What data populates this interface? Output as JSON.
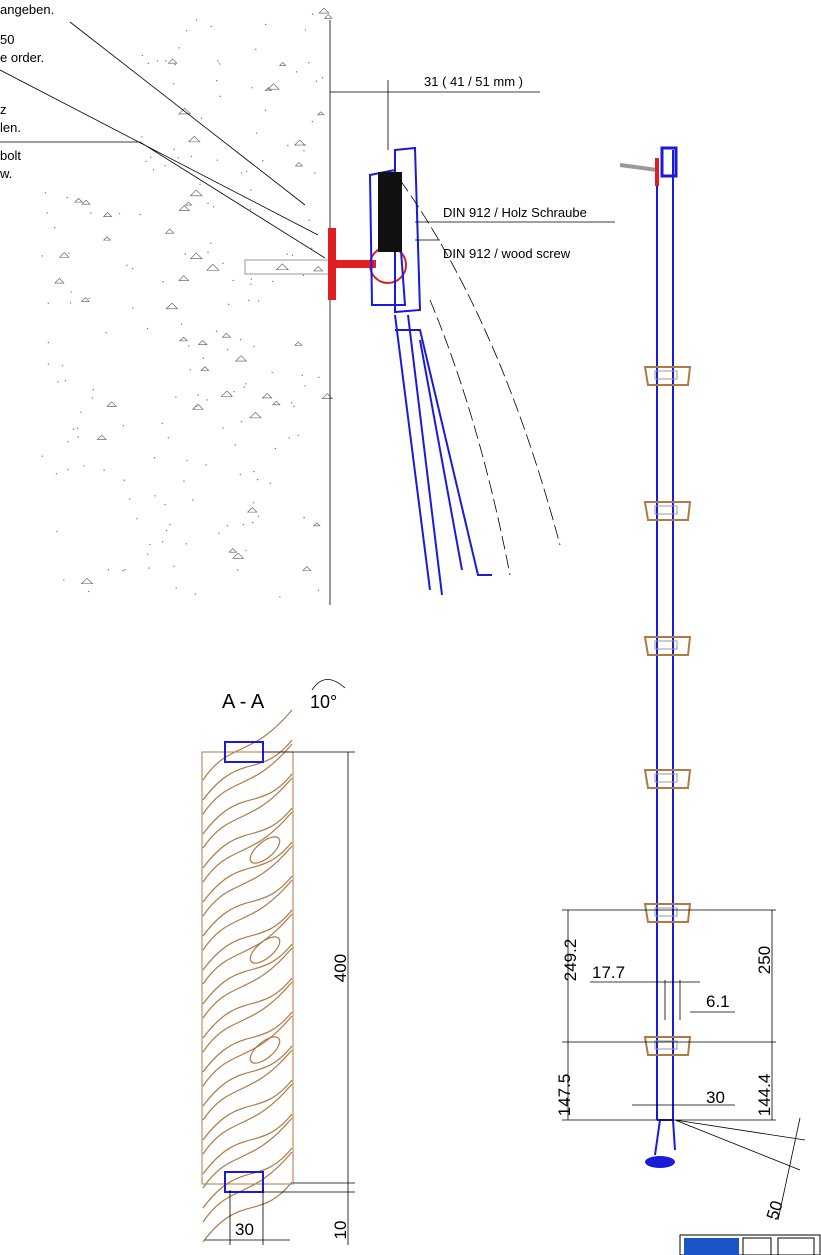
{
  "wall_detail": {
    "notes": [
      "angeben.",
      "50",
      "e order.",
      "z",
      "len.",
      "bolt",
      "w."
    ],
    "dimension": "31 ( 41 / 51 mm )",
    "callouts": [
      "DIN 912 / Holz Schraube",
      "DIN 912 /  wood screw"
    ]
  },
  "section": {
    "title": "A - A",
    "angle": "10°",
    "height": 400,
    "width": 30,
    "offset": 10
  },
  "side_view": {
    "dims": [
      249.2,
      17.7,
      6.1,
      250,
      147.5,
      144.4,
      30,
      50
    ]
  }
}
